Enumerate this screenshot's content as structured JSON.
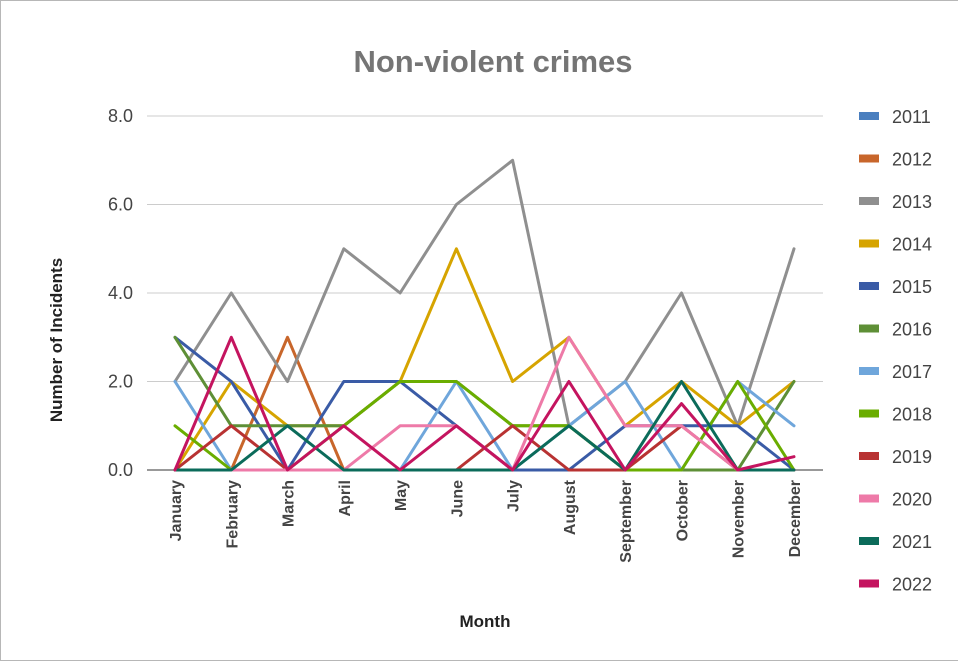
{
  "chart_data": {
    "type": "line",
    "title": "Non-violent crimes",
    "xlabel": "Month",
    "ylabel": "Number of Incidents",
    "ylim": [
      0,
      8
    ],
    "yticks": [
      "0.0",
      "2.0",
      "4.0",
      "6.0",
      "8.0"
    ],
    "grid": true,
    "legend_position": "right",
    "categories": [
      "January",
      "February",
      "March",
      "April",
      "May",
      "June",
      "July",
      "August",
      "September",
      "October",
      "November",
      "December"
    ],
    "series": [
      {
        "name": "2011",
        "color": "#4a7fbf",
        "values": [
          0,
          0,
          0,
          0,
          0,
          0,
          0,
          0,
          0,
          0,
          0,
          0
        ]
      },
      {
        "name": "2012",
        "color": "#c8662b",
        "values": [
          0,
          0,
          3,
          0,
          0,
          0,
          0,
          0,
          0,
          0,
          0,
          0
        ]
      },
      {
        "name": "2013",
        "color": "#8f8f8f",
        "values": [
          2,
          4,
          2,
          5,
          4,
          6,
          7,
          1,
          2,
          4,
          1,
          5
        ]
      },
      {
        "name": "2014",
        "color": "#d6a400",
        "values": [
          0,
          2,
          1,
          1,
          2,
          5,
          2,
          3,
          1,
          2,
          1,
          2
        ]
      },
      {
        "name": "2015",
        "color": "#3a5ba6",
        "values": [
          3,
          2,
          0,
          2,
          2,
          1,
          0,
          0,
          1,
          1,
          1,
          0
        ]
      },
      {
        "name": "2016",
        "color": "#5e8f36",
        "values": [
          3,
          1,
          1,
          1,
          2,
          2,
          1,
          1,
          0,
          0,
          0,
          2
        ]
      },
      {
        "name": "2017",
        "color": "#6fa6db",
        "values": [
          2,
          0,
          0,
          0,
          0,
          2,
          0,
          1,
          2,
          0,
          2,
          1
        ]
      },
      {
        "name": "2018",
        "color": "#6aad00",
        "values": [
          1,
          0,
          0,
          1,
          2,
          2,
          1,
          1,
          0,
          0,
          2,
          0
        ]
      },
      {
        "name": "2019",
        "color": "#b83232",
        "values": [
          0,
          1,
          0,
          0,
          0,
          0,
          1,
          0,
          0,
          1,
          0,
          0
        ]
      },
      {
        "name": "2020",
        "color": "#ee7aa8",
        "values": [
          0,
          0,
          0,
          0,
          1,
          1,
          0,
          3,
          1,
          1,
          0,
          0
        ]
      },
      {
        "name": "2021",
        "color": "#0b6b5a",
        "values": [
          0,
          0,
          1,
          0,
          0,
          0,
          0,
          1,
          0,
          2,
          0,
          0
        ]
      },
      {
        "name": "2022",
        "color": "#c4145f",
        "values": [
          0,
          3,
          0,
          1,
          0,
          1,
          0,
          2,
          0,
          1.5,
          0,
          0.3
        ]
      }
    ]
  }
}
